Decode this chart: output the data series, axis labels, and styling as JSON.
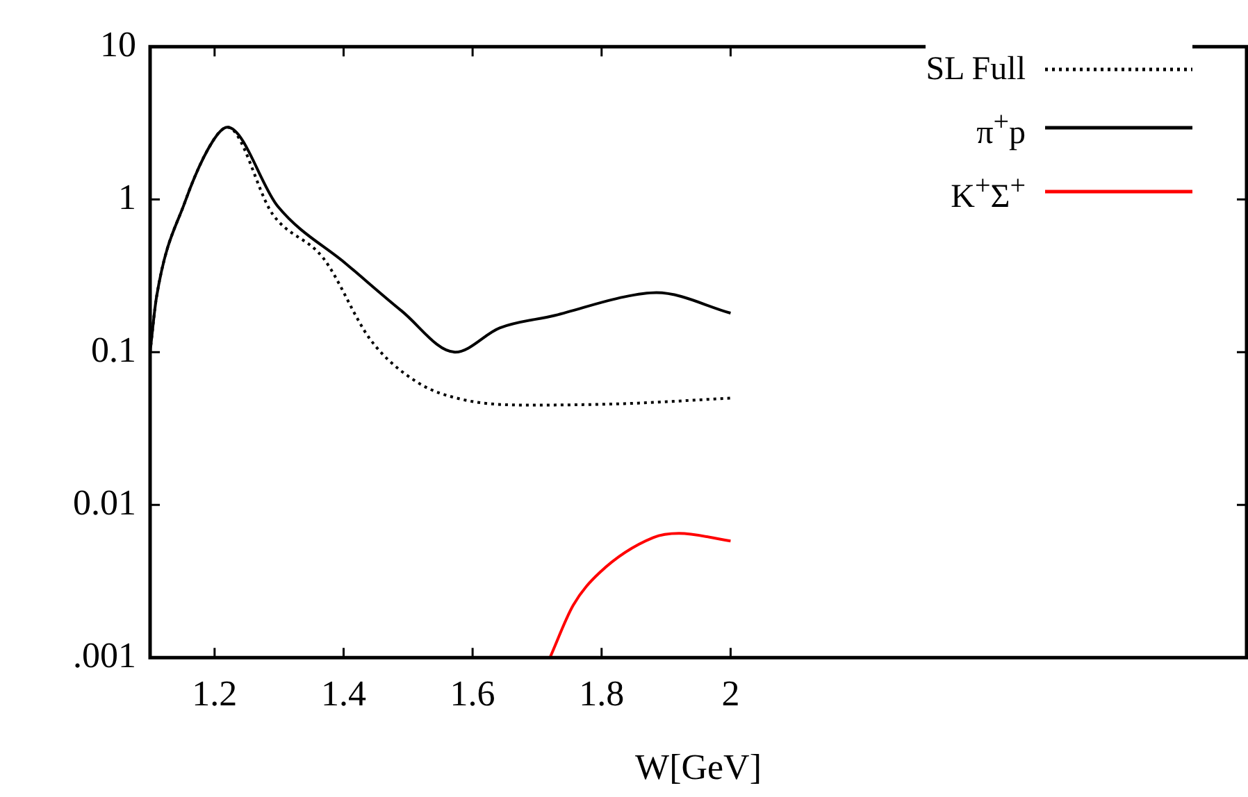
{
  "chart_data": {
    "type": "line",
    "xlabel": "W[GeV]",
    "xlim": [
      1.1,
      2.8
    ],
    "xticks": [
      1.2,
      1.4,
      1.6,
      1.8,
      2
    ],
    "ylim": [
      0.001,
      10
    ],
    "yticks": [
      10,
      1,
      0.1,
      0.01,
      {
        "value": 0.001,
        "label": ".001"
      }
    ],
    "log": "y",
    "grid": false,
    "legend": "top right",
    "marker": "none",
    "series": [
      {
        "name": "SL Full",
        "color": "#000000",
        "line_style": "dotted",
        "x": [
          1.1,
          1.11,
          1.154,
          1.197,
          1.22,
          1.29,
          1.369,
          1.442,
          1.513,
          1.584,
          1.69,
          1.835,
          2.0
        ],
        "values": [
          0.1,
          0.23,
          0.96,
          2.4,
          2.97,
          0.8,
          0.41,
          0.12,
          0.064,
          0.049,
          0.045,
          0.046,
          0.05
        ]
      },
      {
        "name": "π$^{+}$p",
        "color": "#000000",
        "line_style": "solid",
        "x": [
          1.1,
          1.11,
          1.154,
          1.197,
          1.22,
          1.298,
          1.405,
          1.49,
          1.573,
          1.642,
          1.728,
          1.835,
          1.885,
          2.0
        ],
        "values": [
          0.1,
          0.23,
          0.96,
          2.4,
          2.97,
          0.9,
          0.375,
          0.186,
          0.1,
          0.144,
          0.174,
          0.23,
          0.245,
          0.18
        ]
      },
      {
        "name": "K$^{+}$Σ$^{+}$",
        "color": "#ff0000",
        "line_style": "solid",
        "x": [
          1.72,
          1.756,
          1.797,
          1.88,
          1.92,
          2.0
        ],
        "values": [
          0.001,
          0.0022,
          0.0036,
          0.0061,
          0.0065,
          0.0058
        ]
      }
    ]
  }
}
